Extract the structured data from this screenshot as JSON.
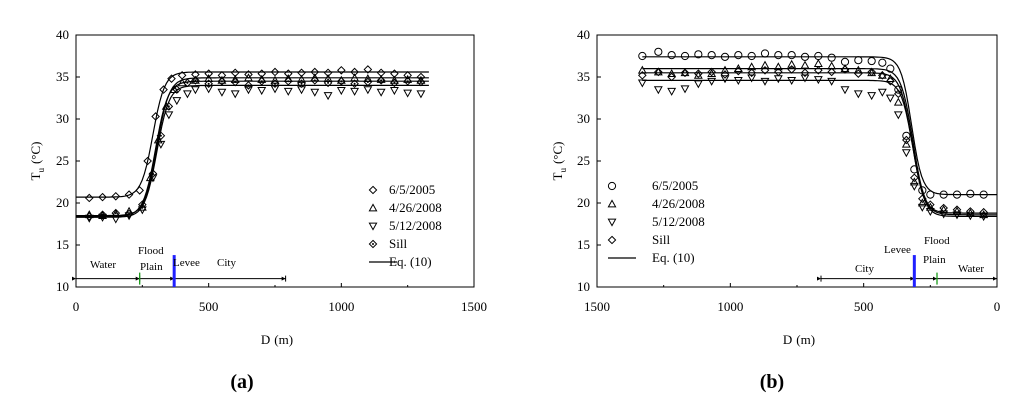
{
  "chart_data": [
    {
      "panel": "(a)",
      "type": "scatter",
      "xlabel_main": "D",
      "xlabel_unit": "(m)",
      "ylabel_main": "T",
      "ylabel_sub": "u",
      "ylabel_unit": "(°C)",
      "xlim": [
        0,
        1500
      ],
      "ylim": [
        10,
        40
      ],
      "xticks": [
        "0",
        "500",
        "1000",
        "1500"
      ],
      "yticks": [
        "10",
        "15",
        "20",
        "25",
        "30",
        "35",
        "40"
      ],
      "legend_location": "lower-right",
      "regions": [
        "Water",
        "Flood",
        "Plain",
        "Levee",
        "City"
      ],
      "series": [
        {
          "name": "6/5/2005",
          "marker": "diamond",
          "x": [
            50,
            100,
            150,
            200,
            240,
            270,
            300,
            330,
            360,
            400,
            450,
            500,
            550,
            600,
            650,
            700,
            750,
            800,
            850,
            900,
            950,
            1000,
            1050,
            1100,
            1150,
            1200,
            1250,
            1300
          ],
          "y": [
            20.6,
            20.7,
            20.8,
            21.0,
            21.5,
            25,
            30.3,
            33.5,
            34.8,
            35.2,
            35.3,
            35.4,
            35.2,
            35.5,
            35.3,
            35.4,
            35.6,
            35.4,
            35.5,
            35.6,
            35.5,
            35.8,
            35.6,
            35.9,
            35.5,
            35.4,
            35.2,
            35.0
          ]
        },
        {
          "name": "4/26/2008",
          "marker": "triangle-up",
          "x": [
            50,
            100,
            150,
            200,
            250,
            280,
            310,
            340,
            370,
            400,
            450,
            500,
            550,
            600,
            650,
            700,
            750,
            800,
            850,
            900,
            950,
            1000,
            1050,
            1100,
            1150,
            1200,
            1250,
            1300
          ],
          "y": [
            18.6,
            18.5,
            18.7,
            19.0,
            19.5,
            23,
            27.5,
            31.5,
            33.5,
            34.3,
            34.6,
            34.8,
            34.6,
            34.7,
            34.9,
            34.7,
            34.6,
            34.8,
            34.7,
            34.9,
            34.8,
            34.6,
            34.9,
            34.8,
            34.7,
            34.6,
            34.7,
            34.6
          ]
        },
        {
          "name": "5/12/2008",
          "marker": "triangle-down",
          "x": [
            50,
            100,
            150,
            200,
            250,
            290,
            320,
            350,
            380,
            420,
            450,
            500,
            550,
            600,
            650,
            700,
            750,
            800,
            850,
            900,
            950,
            1000,
            1050,
            1100,
            1150,
            1200,
            1250,
            1300
          ],
          "y": [
            18.2,
            18.3,
            18.1,
            18.5,
            19.2,
            23,
            27,
            30.5,
            32.2,
            33.0,
            33.5,
            33.6,
            33.2,
            33.0,
            33.5,
            33.4,
            33.6,
            33.3,
            33.5,
            33.2,
            32.8,
            33.4,
            33.3,
            33.5,
            33.2,
            33.4,
            33.1,
            33.0
          ]
        },
        {
          "name": "Sill",
          "marker": "diamond-dot",
          "x": [
            50,
            100,
            150,
            200,
            250,
            290,
            320,
            350,
            380,
            420,
            450,
            500,
            550,
            600,
            650,
            700,
            750,
            800,
            850,
            900,
            950,
            1000,
            1050,
            1100,
            1150,
            1200,
            1250,
            1300
          ],
          "y": [
            18.4,
            18.6,
            18.8,
            18.7,
            19.8,
            23.5,
            28,
            31.5,
            33.5,
            34.3,
            34.6,
            34.2,
            34.5,
            34.4,
            34.0,
            34.5,
            34.2,
            34.5,
            34.2,
            34.6,
            34.3,
            34.5,
            34.2,
            34.4,
            34.6,
            34.3,
            34.5,
            34.4
          ]
        },
        {
          "name": "Eq. (10)",
          "marker": "line",
          "curves": [
            {
              "low": 20.7,
              "high": 35.6,
              "mid": 290,
              "w": 22
            },
            {
              "low": 18.5,
              "high": 34.9,
              "mid": 305,
              "w": 23
            },
            {
              "low": 18.3,
              "high": 34.0,
              "mid": 305,
              "w": 23
            },
            {
              "low": 18.4,
              "high": 34.5,
              "mid": 300,
              "w": 23
            }
          ]
        }
      ]
    },
    {
      "panel": "(b)",
      "type": "scatter",
      "xlabel_main": "D",
      "xlabel_unit": "(m)",
      "ylabel_main": "T",
      "ylabel_sub": "u",
      "ylabel_unit": "(°C)",
      "xlim": [
        1500,
        0
      ],
      "ylim": [
        10,
        40
      ],
      "xticks": [
        "1500",
        "1000",
        "500",
        "0"
      ],
      "yticks": [
        "10",
        "15",
        "20",
        "25",
        "30",
        "35",
        "40"
      ],
      "legend_location": "lower-left",
      "regions": [
        "City",
        "Levee",
        "Flood",
        "Plain",
        "Water"
      ],
      "series": [
        {
          "name": "6/5/2005",
          "marker": "circle",
          "x": [
            1330,
            1270,
            1220,
            1170,
            1120,
            1070,
            1020,
            970,
            920,
            870,
            820,
            770,
            720,
            670,
            620,
            570,
            520,
            470,
            430,
            400,
            370,
            340,
            310,
            280,
            250,
            200,
            150,
            100,
            50
          ],
          "y": [
            37.5,
            38.0,
            37.6,
            37.5,
            37.7,
            37.6,
            37.4,
            37.6,
            37.5,
            37.8,
            37.6,
            37.6,
            37.4,
            37.5,
            37.3,
            36.8,
            37.0,
            36.9,
            36.7,
            36.0,
            33.5,
            28.0,
            24.0,
            21.5,
            21.0,
            21.0,
            21.0,
            21.1,
            21.0
          ]
        },
        {
          "name": "4/26/2008",
          "marker": "triangle-up",
          "x": [
            1330,
            1270,
            1220,
            1170,
            1120,
            1070,
            1020,
            970,
            920,
            870,
            820,
            770,
            720,
            670,
            620,
            570,
            520,
            470,
            430,
            400,
            370,
            340,
            310,
            280,
            250,
            200,
            150,
            100,
            50
          ],
          "y": [
            35.8,
            35.6,
            35.4,
            35.5,
            35.2,
            35.4,
            35.8,
            36.0,
            36.2,
            36.4,
            36.2,
            36.5,
            36.4,
            36.6,
            36.3,
            36.0,
            35.8,
            35.5,
            35.2,
            34.8,
            32.0,
            27.0,
            22.5,
            20.0,
            19.5,
            19.2,
            19.0,
            18.8,
            18.6
          ]
        },
        {
          "name": "5/12/2008",
          "marker": "triangle-down",
          "x": [
            1330,
            1270,
            1220,
            1170,
            1120,
            1070,
            1020,
            970,
            920,
            870,
            820,
            770,
            720,
            670,
            620,
            570,
            520,
            470,
            430,
            400,
            370,
            340,
            310,
            280,
            250,
            200,
            150,
            100,
            50
          ],
          "y": [
            34.3,
            33.5,
            33.3,
            33.6,
            34.2,
            34.5,
            34.8,
            34.6,
            34.9,
            34.5,
            34.8,
            34.6,
            34.9,
            34.7,
            34.5,
            33.5,
            33.0,
            32.8,
            33.2,
            32.5,
            30.5,
            26.0,
            22.0,
            19.5,
            19.0,
            18.7,
            18.6,
            18.5,
            18.4
          ]
        },
        {
          "name": "Sill",
          "marker": "diamond",
          "x": [
            1330,
            1270,
            1220,
            1170,
            1120,
            1070,
            1020,
            970,
            920,
            870,
            820,
            770,
            720,
            670,
            620,
            570,
            520,
            470,
            430,
            400,
            370,
            340,
            310,
            280,
            250,
            200,
            150,
            100,
            50
          ],
          "y": [
            35.2,
            35.6,
            35.0,
            35.5,
            35.4,
            35.6,
            35.3,
            35.7,
            35.5,
            35.8,
            35.6,
            35.9,
            35.5,
            35.8,
            35.6,
            35.9,
            35.4,
            35.6,
            35.2,
            34.5,
            33.0,
            27.5,
            23.0,
            20.5,
            19.8,
            19.4,
            19.2,
            19.0,
            18.9
          ]
        },
        {
          "name": "Eq. (10)",
          "marker": "line",
          "curves": [
            {
              "low": 21.0,
              "high": 37.4,
              "mid": 320,
              "w": 20
            },
            {
              "low": 18.6,
              "high": 36.0,
              "mid": 315,
              "w": 22
            },
            {
              "low": 18.4,
              "high": 34.6,
              "mid": 315,
              "w": 22
            },
            {
              "low": 18.8,
              "high": 35.5,
              "mid": 318,
              "w": 22
            }
          ]
        }
      ]
    }
  ]
}
